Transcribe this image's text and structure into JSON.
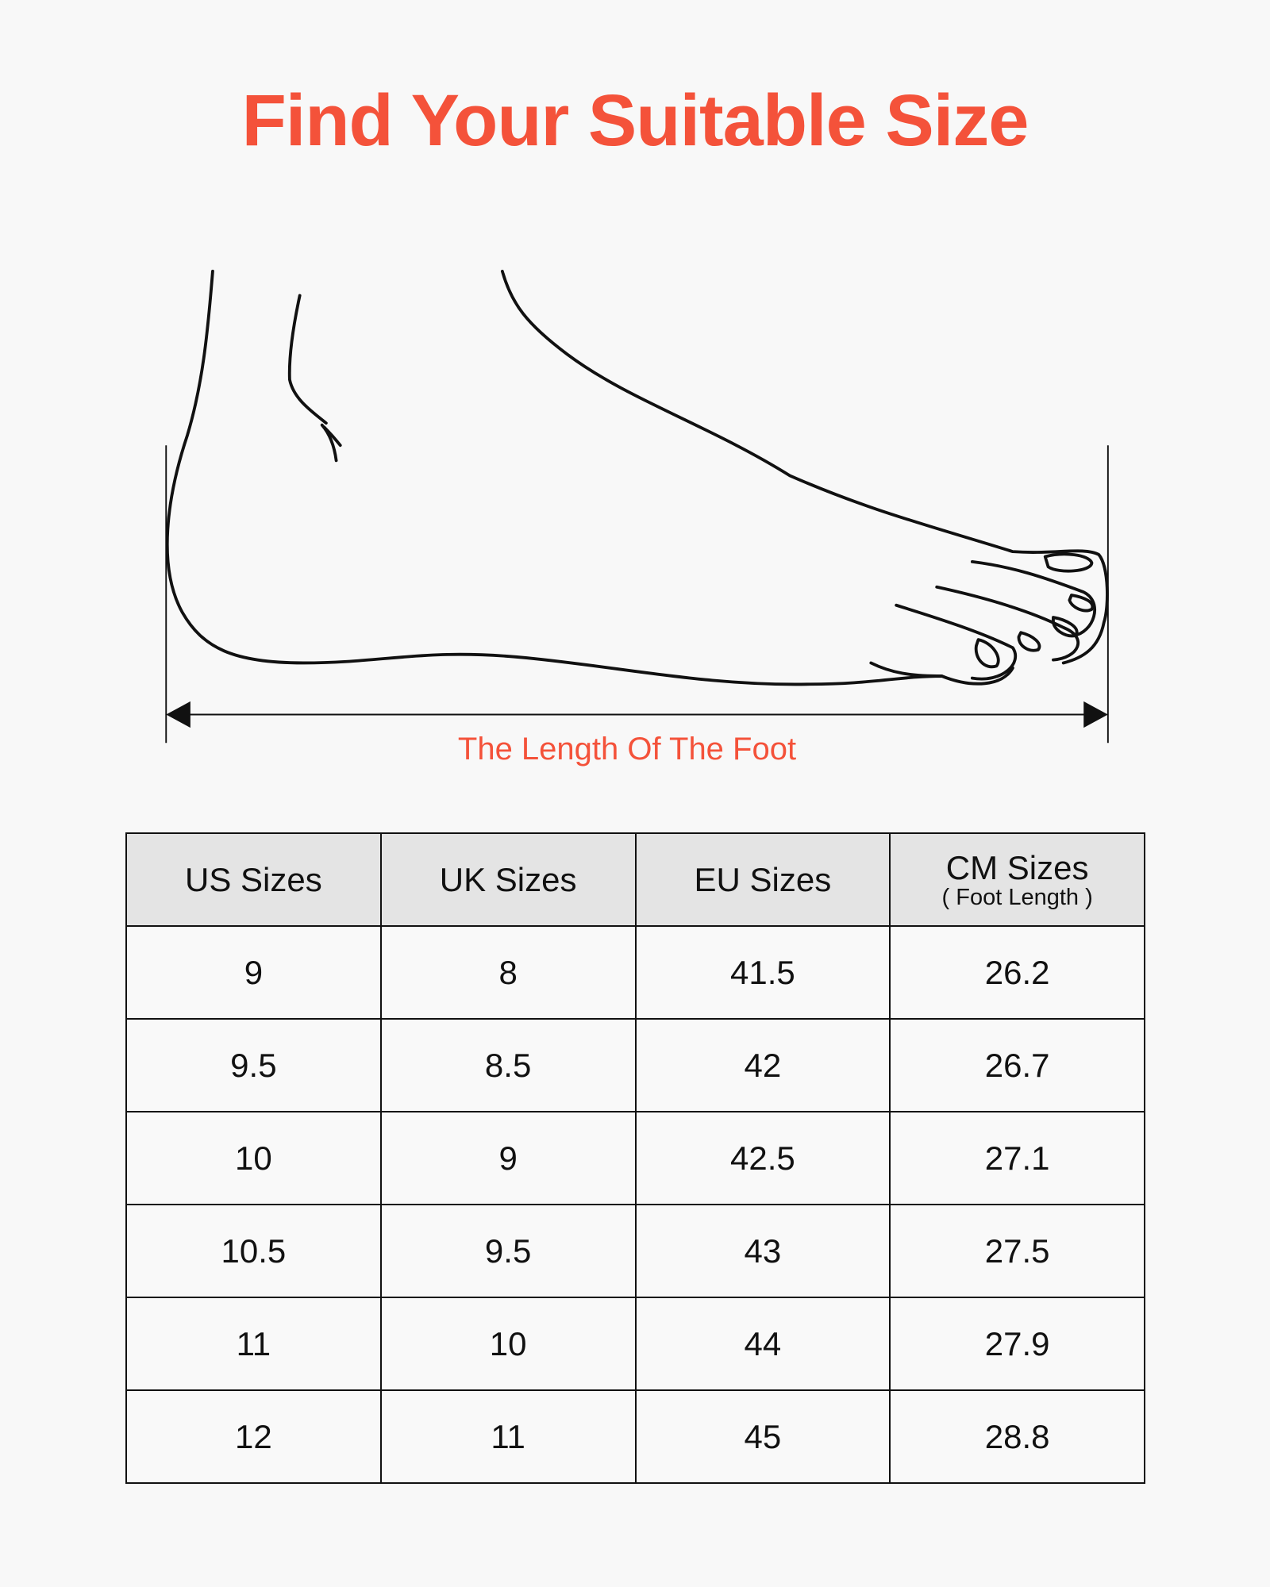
{
  "title": "Find Your Suitable Size",
  "illustration": {
    "caption": "The Length Of The Foot"
  },
  "table": {
    "headers": [
      {
        "label": "US Sizes"
      },
      {
        "label": "UK Sizes"
      },
      {
        "label": "EU Sizes"
      },
      {
        "label": "CM Sizes",
        "sublabel": "( Foot Length )"
      }
    ],
    "rows": [
      [
        "9",
        "8",
        "41.5",
        "26.2"
      ],
      [
        "9.5",
        "8.5",
        "42",
        "26.7"
      ],
      [
        "10",
        "9",
        "42.5",
        "27.1"
      ],
      [
        "10.5",
        "9.5",
        "43",
        "27.5"
      ],
      [
        "11",
        "10",
        "44",
        "27.9"
      ],
      [
        "12",
        "11",
        "45",
        "28.8"
      ]
    ]
  },
  "colors": {
    "accent": "#f4523a",
    "header_bg": "#e4e4e4",
    "background": "#f8f8f8"
  }
}
